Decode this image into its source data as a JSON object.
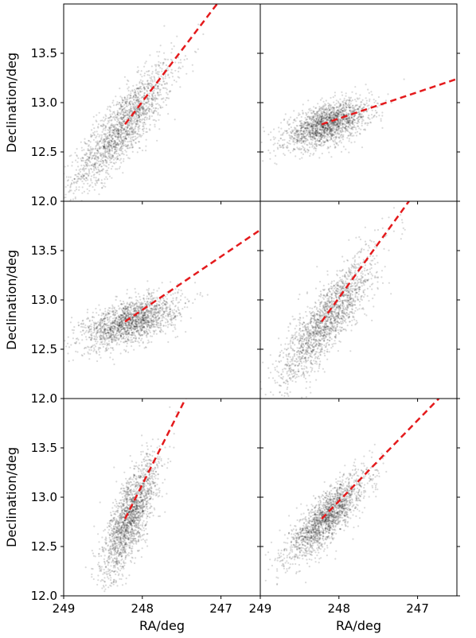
{
  "chart_data": {
    "type": "scatter",
    "layout": "3x2 grid of panels sharing axes",
    "xlabel": "RA/deg",
    "ylabel": "Declination/deg",
    "xlim": [
      249,
      246.5
    ],
    "ylim": [
      12.0,
      14.0
    ],
    "x_inverted": true,
    "xticks": [
      249,
      248,
      247
    ],
    "xtick_labels": [
      "249",
      "248",
      "247"
    ],
    "yticks": [
      12.0,
      12.5,
      13.0,
      13.5
    ],
    "ytick_labels": [
      "12.0",
      "12.5",
      "13.0",
      "13.5"
    ],
    "grid": false,
    "point_color": "#000000",
    "point_alpha": 0.15,
    "line_color": "#e41a1c",
    "line_style": "dashed",
    "panels": [
      {
        "cluster_center": [
          248.25,
          12.75
        ],
        "scatter_ra": 0.32,
        "scatter_dec": 0.32,
        "correlation": 0.85,
        "line": {
          "x": [
            248.22,
            247.05
          ],
          "y": [
            12.78,
            14.0
          ]
        }
      },
      {
        "cluster_center": [
          248.15,
          12.78
        ],
        "scatter_ra": 0.27,
        "scatter_dec": 0.12,
        "correlation": 0.55,
        "line": {
          "x": [
            248.22,
            246.5
          ],
          "y": [
            12.78,
            13.24
          ]
        }
      },
      {
        "cluster_center": [
          248.15,
          12.78
        ],
        "scatter_ra": 0.3,
        "scatter_dec": 0.13,
        "correlation": 0.55,
        "line": {
          "x": [
            248.22,
            246.5
          ],
          "y": [
            12.78,
            13.71
          ]
        }
      },
      {
        "cluster_center": [
          248.15,
          12.8
        ],
        "scatter_ra": 0.3,
        "scatter_dec": 0.33,
        "correlation": 0.85,
        "line": {
          "x": [
            248.22,
            247.11
          ],
          "y": [
            12.78,
            14.0
          ]
        }
      },
      {
        "cluster_center": [
          248.15,
          12.8
        ],
        "scatter_ra": 0.18,
        "scatter_dec": 0.3,
        "correlation": 0.75,
        "line": {
          "x": [
            248.22,
            247.45
          ],
          "y": [
            12.78,
            14.0
          ]
        }
      },
      {
        "cluster_center": [
          248.15,
          12.8
        ],
        "scatter_ra": 0.25,
        "scatter_dec": 0.22,
        "correlation": 0.82,
        "line": {
          "x": [
            248.22,
            246.73
          ],
          "y": [
            12.78,
            14.0
          ]
        }
      }
    ]
  }
}
